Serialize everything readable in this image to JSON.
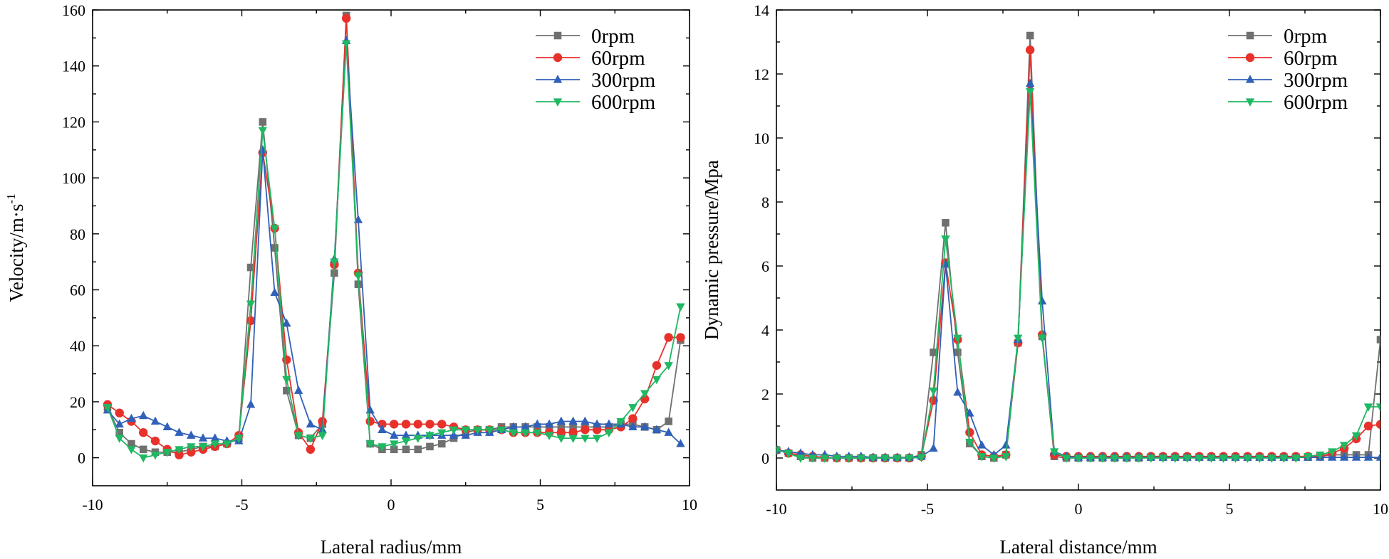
{
  "chart_data": [
    {
      "type": "line",
      "xlabel": "Lateral radius/mm",
      "ylabel_main": "Velocity/m·s",
      "ylabel_sup": "-1",
      "xlim": [
        -10,
        10
      ],
      "ylim": [
        -10,
        160
      ],
      "xticks": [
        -10,
        -5,
        0,
        5,
        10
      ],
      "xtick_labels": [
        "-10",
        "-5",
        "0",
        "5",
        "10"
      ],
      "yticks": [
        0,
        20,
        40,
        60,
        80,
        100,
        120,
        140,
        160
      ],
      "ytick_labels": [
        "0",
        "20",
        "40",
        "60",
        "80",
        "100",
        "120",
        "140",
        "160"
      ],
      "grid": false,
      "legend_position": "top-right",
      "x": [
        -9.5,
        -9.1,
        -8.7,
        -8.3,
        -7.9,
        -7.5,
        -7.1,
        -6.7,
        -6.3,
        -5.9,
        -5.5,
        -5.1,
        -4.7,
        -4.3,
        -3.9,
        -3.5,
        -3.1,
        -2.7,
        -2.3,
        -1.9,
        -1.5,
        -1.1,
        -0.7,
        -0.3,
        0.1,
        0.5,
        0.9,
        1.3,
        1.7,
        2.1,
        2.5,
        2.9,
        3.3,
        3.7,
        4.1,
        4.5,
        4.9,
        5.3,
        5.7,
        6.1,
        6.5,
        6.9,
        7.3,
        7.7,
        8.1,
        8.5,
        8.9,
        9.3,
        9.7
      ],
      "series": [
        {
          "name": "0rpm",
          "color": "#707070",
          "marker": "square",
          "values": [
            18,
            9,
            5,
            3,
            2,
            2,
            2,
            3,
            4,
            4,
            5,
            7,
            68,
            120,
            75,
            24,
            8,
            7,
            12,
            66,
            158,
            62,
            5,
            3,
            3,
            3,
            3,
            4,
            5,
            7,
            9,
            10,
            10,
            11,
            11,
            11,
            11,
            11,
            11,
            11,
            11,
            11,
            11,
            12,
            12,
            11,
            10,
            13,
            42
          ]
        },
        {
          "name": "60rpm",
          "color": "#e8312b",
          "marker": "circle",
          "values": [
            19,
            16,
            13,
            9,
            6,
            3,
            1,
            2,
            3,
            4,
            5,
            8,
            49,
            109,
            82,
            35,
            9,
            3,
            13,
            69,
            157,
            66,
            13,
            12,
            12,
            12,
            12,
            12,
            12,
            11,
            10,
            10,
            10,
            10,
            9,
            9,
            9,
            9,
            9,
            9,
            10,
            10,
            10,
            11,
            14,
            21,
            33,
            43,
            43
          ]
        },
        {
          "name": "300rpm",
          "color": "#3060b8",
          "marker": "triangle-up",
          "values": [
            17,
            12,
            14,
            15,
            13,
            11,
            9,
            8,
            7,
            7,
            6,
            6,
            19,
            110,
            59,
            48,
            24,
            12,
            10,
            71,
            149,
            85,
            17,
            10,
            8,
            8,
            8,
            8,
            8,
            8,
            8,
            9,
            9,
            10,
            11,
            11,
            12,
            12,
            13,
            13,
            13,
            12,
            12,
            12,
            11,
            11,
            10,
            9,
            5
          ]
        },
        {
          "name": "600rpm",
          "color": "#1fb863",
          "marker": "triangle-down",
          "values": [
            18,
            7,
            3,
            0,
            1,
            2,
            3,
            4,
            4,
            5,
            5,
            7,
            55,
            117,
            82,
            28,
            8,
            7,
            8,
            70,
            148,
            65,
            5,
            4,
            5,
            6,
            7,
            8,
            9,
            10,
            10,
            10,
            10,
            10,
            9,
            9,
            9,
            8,
            7,
            7,
            7,
            7,
            9,
            13,
            18,
            23,
            28,
            33,
            54
          ]
        }
      ]
    },
    {
      "type": "line",
      "xlabel": "Lateral distance/mm",
      "ylabel_main": "Dynamic pressure/Mpa",
      "ylabel_sup": "",
      "xlim": [
        -10,
        10
      ],
      "ylim": [
        -1,
        14
      ],
      "xticks": [
        -10,
        -5,
        0,
        5,
        10
      ],
      "xtick_labels": [
        "-10",
        "-5",
        "0",
        "5",
        "10"
      ],
      "yticks": [
        0,
        2,
        4,
        6,
        8,
        10,
        12,
        14
      ],
      "ytick_labels": [
        "0",
        "2",
        "4",
        "6",
        "8",
        "10",
        "12",
        "14"
      ],
      "grid": false,
      "legend_position": "top-right",
      "x": [
        -10,
        -9.6,
        -9.2,
        -8.8,
        -8.4,
        -8.0,
        -7.6,
        -7.2,
        -6.8,
        -6.4,
        -6.0,
        -5.6,
        -5.2,
        -4.8,
        -4.4,
        -4.0,
        -3.6,
        -3.2,
        -2.8,
        -2.4,
        -2.0,
        -1.6,
        -1.2,
        -0.8,
        -0.4,
        0.0,
        0.4,
        0.8,
        1.2,
        1.6,
        2.0,
        2.4,
        2.8,
        3.2,
        3.6,
        4.0,
        4.4,
        4.8,
        5.2,
        5.6,
        6.0,
        6.4,
        6.8,
        7.2,
        7.6,
        8.0,
        8.4,
        8.8,
        9.2,
        9.6,
        10.0
      ],
      "series": [
        {
          "name": "0rpm",
          "color": "#707070",
          "marker": "square",
          "values": [
            0.25,
            0.15,
            0.05,
            0,
            0,
            0,
            0,
            0,
            0,
            0,
            0,
            0,
            0.1,
            3.3,
            7.35,
            3.3,
            0.45,
            0.05,
            0,
            0.1,
            3.6,
            13.2,
            3.8,
            0.05,
            0,
            0,
            0,
            0,
            0,
            0,
            0,
            0.03,
            0.03,
            0.03,
            0.03,
            0.03,
            0.03,
            0.03,
            0.03,
            0.03,
            0.03,
            0.03,
            0.03,
            0.03,
            0.03,
            0.05,
            0.1,
            0.1,
            0.1,
            0.1,
            3.7
          ]
        },
        {
          "name": "60rpm",
          "color": "#e8312b",
          "marker": "circle",
          "values": [
            0.25,
            0.15,
            0.1,
            0.05,
            0.02,
            0,
            0,
            0,
            0,
            0,
            0,
            0,
            0.05,
            1.8,
            6.1,
            3.7,
            0.8,
            0.1,
            0.05,
            0.1,
            3.6,
            12.75,
            3.85,
            0.1,
            0.05,
            0.05,
            0.05,
            0.05,
            0.05,
            0.05,
            0.05,
            0.05,
            0.05,
            0.05,
            0.05,
            0.05,
            0.05,
            0.05,
            0.05,
            0.05,
            0.05,
            0.05,
            0.05,
            0.05,
            0.05,
            0.05,
            0.15,
            0.3,
            0.6,
            1.0,
            1.05
          ]
        },
        {
          "name": "300rpm",
          "color": "#3060b8",
          "marker": "triangle-up",
          "values": [
            0.25,
            0.2,
            0.15,
            0.1,
            0.1,
            0.05,
            0.05,
            0.05,
            0.02,
            0.02,
            0.02,
            0.02,
            0.05,
            0.3,
            6.05,
            2.05,
            1.4,
            0.4,
            0.1,
            0.4,
            3.7,
            11.7,
            4.9,
            0.2,
            0.05,
            0.02,
            0.02,
            0.02,
            0.02,
            0.02,
            0.02,
            0.02,
            0.02,
            0.02,
            0.02,
            0.02,
            0.02,
            0.02,
            0.02,
            0.02,
            0.02,
            0.02,
            0.02,
            0.02,
            0.02,
            0.02,
            0.02,
            0.02,
            0.02,
            0.02,
            0.02
          ]
        },
        {
          "name": "600rpm",
          "color": "#1fb863",
          "marker": "triangle-down",
          "values": [
            0.25,
            0.15,
            0,
            0,
            0,
            0,
            0,
            0,
            0,
            0,
            0,
            0,
            0.02,
            2.1,
            6.85,
            3.75,
            0.5,
            0.05,
            0,
            0.05,
            3.75,
            11.45,
            3.75,
            0.2,
            0,
            0,
            0,
            0,
            0,
            0,
            0,
            0,
            0,
            0,
            0,
            0,
            0,
            0,
            0,
            0,
            0,
            0,
            0,
            0,
            0.05,
            0.1,
            0.2,
            0.4,
            0.7,
            1.6,
            1.6
          ]
        }
      ]
    }
  ]
}
